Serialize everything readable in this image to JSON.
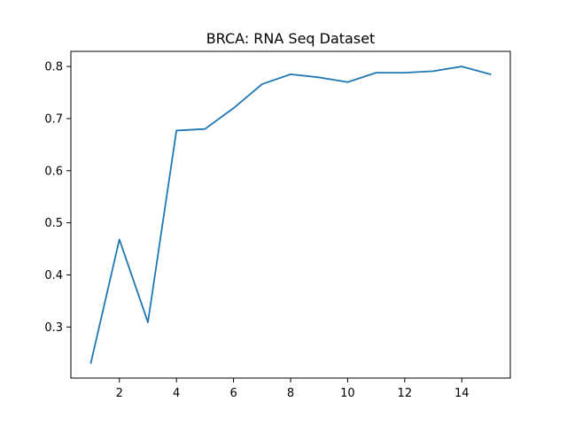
{
  "chart_data": {
    "type": "line",
    "title": "BRCA: RNA Seq Dataset",
    "xlabel": "",
    "ylabel": "",
    "xlim": [
      0.3,
      15.7
    ],
    "ylim": [
      0.202,
      0.829
    ],
    "xticks": [
      2,
      4,
      6,
      8,
      10,
      12,
      14
    ],
    "xtick_labels": [
      "2",
      "4",
      "6",
      "8",
      "10",
      "12",
      "14"
    ],
    "yticks": [
      0.3,
      0.4,
      0.5,
      0.6,
      0.7,
      0.8
    ],
    "ytick_labels": [
      "0.3",
      "0.4",
      "0.5",
      "0.6",
      "0.7",
      "0.8"
    ],
    "grid": false,
    "series": [
      {
        "color": "#1f77b4",
        "x": [
          1,
          2,
          3,
          4,
          5,
          6,
          7,
          8,
          9,
          10,
          11,
          12,
          13,
          14,
          15
        ],
        "y": [
          0.231,
          0.468,
          0.309,
          0.677,
          0.68,
          0.72,
          0.766,
          0.785,
          0.779,
          0.77,
          0.788,
          0.788,
          0.791,
          0.8,
          0.785
        ]
      }
    ]
  }
}
